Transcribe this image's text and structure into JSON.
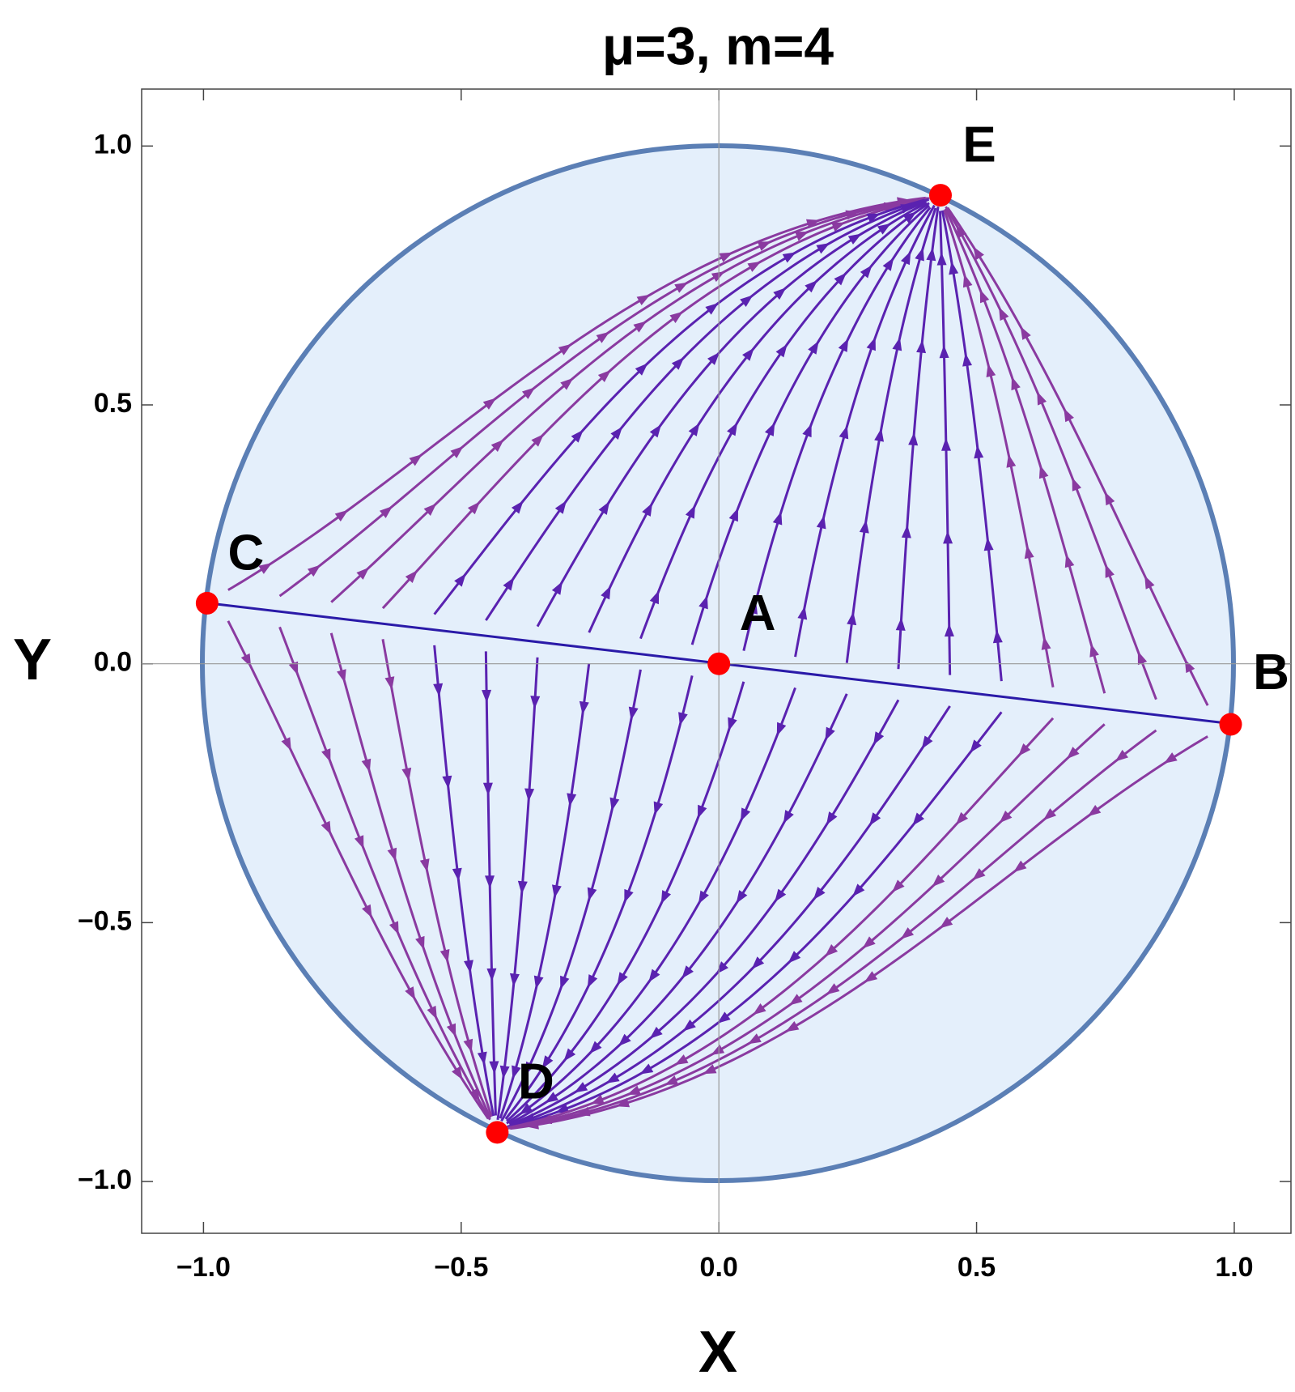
{
  "chart_data": {
    "type": "scatter",
    "title": "μ=3, m=4",
    "xlabel": "X",
    "ylabel": "Y",
    "points": [
      {
        "label": "A",
        "x": 0,
        "y": 0
      },
      {
        "label": "B",
        "x": 0.993,
        "y": -0.117
      },
      {
        "label": "C",
        "x": -0.993,
        "y": 0.117
      },
      {
        "label": "D",
        "x": -0.43,
        "y": -0.905
      },
      {
        "label": "E",
        "x": 0.43,
        "y": 0.905
      }
    ],
    "color": "#ff0000",
    "xlim": [
      -1.12,
      1.11
    ],
    "ylim": [
      -1.1,
      1.11
    ],
    "xticks": [
      {
        "value": -1,
        "label": "−1.0"
      },
      {
        "value": -0.5,
        "label": "−0.5"
      },
      {
        "value": 0,
        "label": "0.0"
      },
      {
        "value": 0.5,
        "label": "0.5"
      },
      {
        "value": 1,
        "label": "1.0"
      }
    ],
    "yticks": [
      {
        "value": -1,
        "label": "−1.0"
      },
      {
        "value": -0.5,
        "label": "−0.5"
      },
      {
        "value": 0,
        "label": "0.0"
      },
      {
        "value": 0.5,
        "label": "0.5"
      },
      {
        "value": 1,
        "label": "1.0"
      }
    ]
  }
}
